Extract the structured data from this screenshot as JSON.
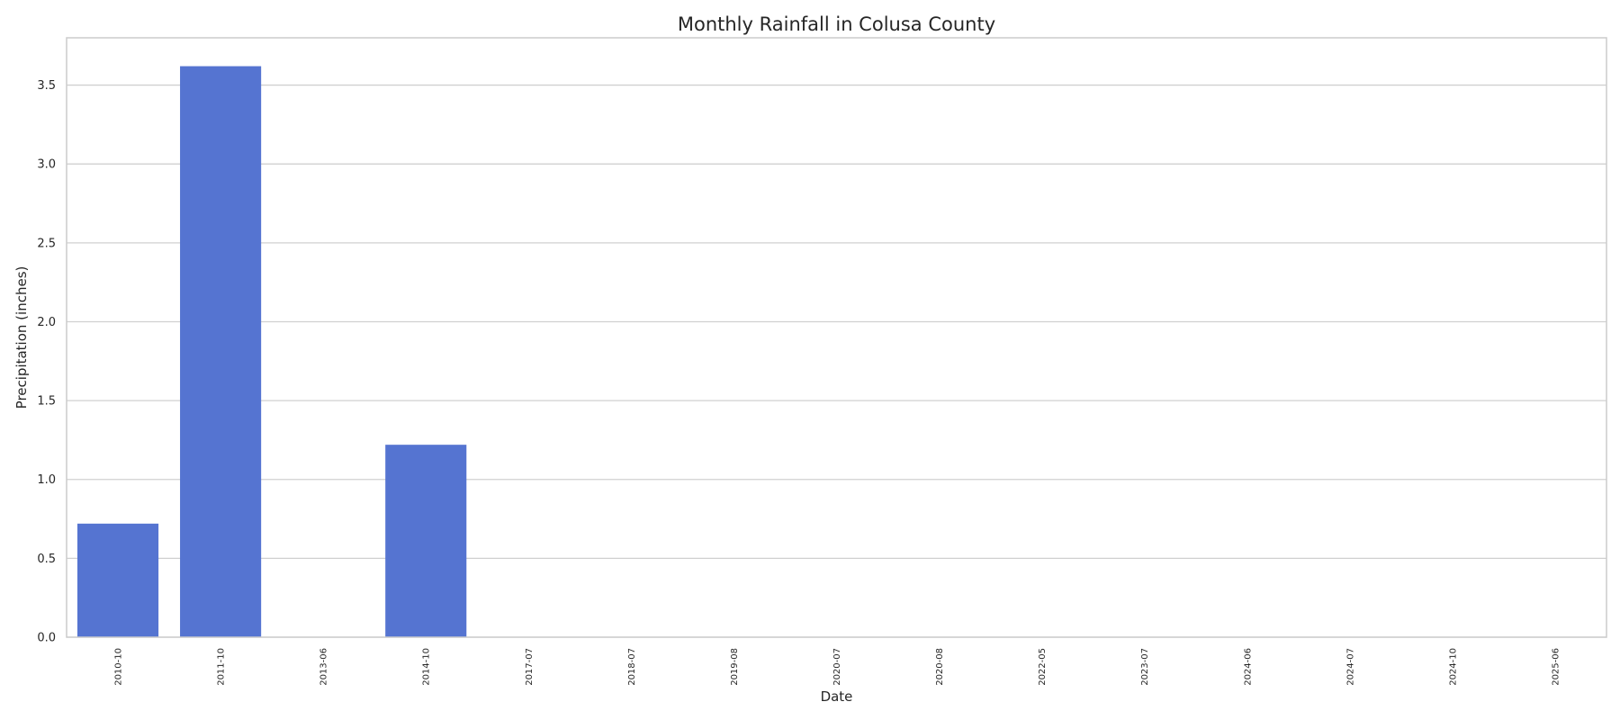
{
  "chart_data": {
    "type": "bar",
    "title": "Monthly Rainfall in Colusa County",
    "xlabel": "Date",
    "ylabel": "Precipitation (inches)",
    "categories": [
      "2010-10",
      "2011-10",
      "2013-06",
      "2014-10",
      "2017-07",
      "2018-07",
      "2019-08",
      "2020-07",
      "2020-08",
      "2022-05",
      "2023-07",
      "2024-06",
      "2024-07",
      "2024-10",
      "2025-06"
    ],
    "values": [
      0.72,
      3.62,
      0.0,
      1.22,
      0.0,
      0.0,
      0.0,
      0.0,
      0.0,
      0.0,
      0.0,
      0.0,
      0.0,
      0.0,
      0.0
    ],
    "ylim": [
      0,
      3.8
    ],
    "yticks": [
      0.0,
      0.5,
      1.0,
      1.5,
      2.0,
      2.5,
      3.0,
      3.5
    ],
    "ytick_labels": [
      "0.0",
      "0.5",
      "1.0",
      "1.5",
      "2.0",
      "2.5",
      "3.0",
      "3.5"
    ],
    "grid": "y",
    "bar_color": "#5574d1",
    "grid_color": "#d0d0d0",
    "frame_color": "#cccccc"
  }
}
